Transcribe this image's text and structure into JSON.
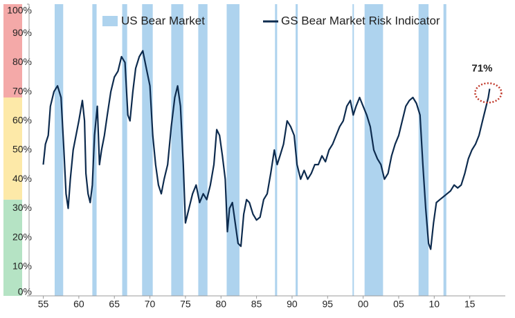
{
  "chart_data": {
    "type": "line",
    "x": [
      1955.0,
      1955.3,
      1955.7,
      1956.0,
      1956.5,
      1957.0,
      1957.5,
      1957.9,
      1958.2,
      1958.5,
      1958.8,
      1959.2,
      1959.6,
      1960.0,
      1960.5,
      1960.8,
      1961.0,
      1961.3,
      1961.6,
      1961.9,
      1962.2,
      1962.6,
      1962.9,
      1963.2,
      1963.6,
      1964.0,
      1964.5,
      1965.0,
      1965.5,
      1966.0,
      1966.5,
      1966.9,
      1967.2,
      1967.6,
      1968.0,
      1968.5,
      1969.0,
      1969.5,
      1970.0,
      1970.4,
      1970.8,
      1971.2,
      1971.6,
      1972.0,
      1972.5,
      1973.0,
      1973.5,
      1973.9,
      1974.3,
      1974.7,
      1975.0,
      1975.5,
      1976.0,
      1976.5,
      1977.0,
      1977.5,
      1978.0,
      1978.5,
      1979.0,
      1979.4,
      1979.8,
      1980.2,
      1980.6,
      1980.9,
      1981.2,
      1981.6,
      1982.0,
      1982.4,
      1982.8,
      1983.2,
      1983.6,
      1984.0,
      1984.5,
      1985.0,
      1985.5,
      1986.0,
      1986.5,
      1987.0,
      1987.5,
      1987.9,
      1988.3,
      1988.8,
      1989.3,
      1989.8,
      1990.3,
      1990.7,
      1991.2,
      1991.7,
      1992.2,
      1992.7,
      1993.2,
      1993.7,
      1994.2,
      1994.7,
      1995.2,
      1995.7,
      1996.2,
      1996.7,
      1997.2,
      1997.7,
      1998.2,
      1998.6,
      1999.0,
      1999.5,
      2000.0,
      2000.5,
      2001.0,
      2001.5,
      2002.0,
      2002.5,
      2003.0,
      2003.5,
      2004.0,
      2004.5,
      2005.0,
      2005.5,
      2006.0,
      2006.5,
      2007.0,
      2007.5,
      2008.0,
      2008.4,
      2008.8,
      2009.2,
      2009.5,
      2009.9,
      2010.3,
      2010.8,
      2011.3,
      2011.8,
      2012.3,
      2012.8,
      2013.3,
      2013.8,
      2014.3,
      2014.8,
      2015.3,
      2015.8,
      2016.3,
      2016.8,
      2017.3,
      2017.6,
      2017.8
    ],
    "series": [
      {
        "name": "GS Bear Market Risk Indicator",
        "color": "#0d2b4e",
        "values": [
          45,
          52,
          55,
          65,
          70,
          72,
          68,
          50,
          35,
          30,
          40,
          50,
          55,
          60,
          67,
          60,
          42,
          35,
          32,
          38,
          55,
          65,
          45,
          50,
          55,
          62,
          70,
          75,
          77,
          82,
          80,
          62,
          60,
          70,
          78,
          82,
          84,
          78,
          72,
          55,
          45,
          38,
          35,
          40,
          45,
          58,
          68,
          72,
          65,
          45,
          25,
          30,
          35,
          38,
          32,
          35,
          33,
          38,
          45,
          57,
          55,
          48,
          40,
          22,
          30,
          32,
          25,
          18,
          17,
          28,
          33,
          32,
          28,
          26,
          27,
          33,
          35,
          42,
          50,
          45,
          48,
          52,
          60,
          58,
          55,
          45,
          40,
          43,
          40,
          42,
          45,
          45,
          48,
          46,
          50,
          52,
          55,
          58,
          60,
          65,
          67,
          62,
          65,
          68,
          65,
          62,
          58,
          50,
          47,
          45,
          40,
          42,
          48,
          52,
          55,
          60,
          65,
          67,
          68,
          66,
          62,
          45,
          30,
          18,
          16,
          25,
          32,
          33,
          34,
          35,
          36,
          38,
          37,
          38,
          42,
          47,
          50,
          52,
          55,
          60,
          65,
          68,
          71
        ]
      }
    ],
    "bear_markets": {
      "name": "US Bear Market",
      "color": "#aed3ee",
      "periods": [
        [
          1956.6,
          1957.8
        ],
        [
          1961.9,
          1962.5
        ],
        [
          1966.1,
          1966.8
        ],
        [
          1968.9,
          1970.4
        ],
        [
          1973.0,
          1974.7
        ],
        [
          1976.8,
          1978.1
        ],
        [
          1980.8,
          1982.6
        ],
        [
          1987.6,
          1987.9
        ],
        [
          1990.5,
          1990.8
        ],
        [
          1998.5,
          1998.7
        ],
        [
          2000.2,
          2002.8
        ],
        [
          2007.8,
          2009.2
        ],
        [
          2011.3,
          2011.7
        ]
      ]
    },
    "zones": [
      {
        "from": 0,
        "to": 33,
        "color": "#b5e3c4"
      },
      {
        "from": 33,
        "to": 68,
        "color": "#fde9a8"
      },
      {
        "from": 68,
        "to": 100,
        "color": "#f4a9a8"
      }
    ],
    "annotation": {
      "text": "71%",
      "x": 2017.8,
      "y": 71
    },
    "xlim": [
      1953,
      2020
    ],
    "xticks": [
      {
        "value": 1955,
        "label": "55"
      },
      {
        "value": 1960,
        "label": "60"
      },
      {
        "value": 1965,
        "label": "65"
      },
      {
        "value": 1970,
        "label": "70"
      },
      {
        "value": 1975,
        "label": "75"
      },
      {
        "value": 1980,
        "label": "80"
      },
      {
        "value": 1985,
        "label": "85"
      },
      {
        "value": 1990,
        "label": "90"
      },
      {
        "value": 1995,
        "label": "95"
      },
      {
        "value": 2000,
        "label": "00"
      },
      {
        "value": 2005,
        "label": "05"
      },
      {
        "value": 2010,
        "label": "10"
      },
      {
        "value": 2015,
        "label": "15"
      }
    ],
    "ylim": [
      0,
      100
    ],
    "yticks": [
      {
        "value": 0,
        "label": "0%"
      },
      {
        "value": 10,
        "label": "10%"
      },
      {
        "value": 20,
        "label": "20%"
      },
      {
        "value": 30,
        "label": "30%"
      },
      {
        "value": 40,
        "label": "40%"
      },
      {
        "value": 50,
        "label": "50%"
      },
      {
        "value": 60,
        "label": "60%"
      },
      {
        "value": 70,
        "label": "70%"
      },
      {
        "value": 80,
        "label": "80%"
      },
      {
        "value": 90,
        "label": "90%"
      },
      {
        "value": 100,
        "label": "100%"
      }
    ]
  }
}
